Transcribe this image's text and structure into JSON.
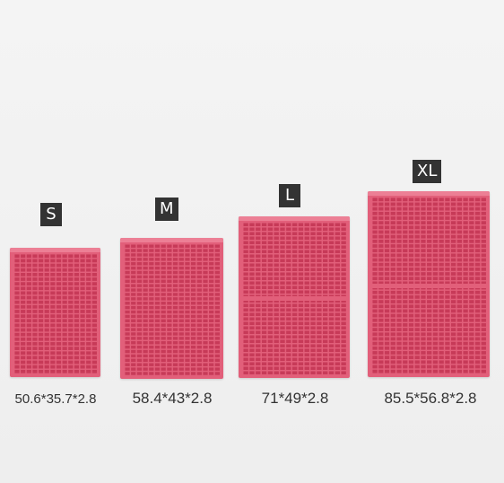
{
  "colors": {
    "mat_frame": "#e25f7a",
    "mat_rim": "#ec7f95",
    "mat_holes": "#c73a58",
    "badge_bg": "#333333",
    "label_text": "#333333"
  },
  "products": [
    {
      "size": "S",
      "dimensions": "50.6*35.7*2.8"
    },
    {
      "size": "M",
      "dimensions": "58.4*43*2.8"
    },
    {
      "size": "L",
      "dimensions": "71*49*2.8"
    },
    {
      "size": "XL",
      "dimensions": "85.5*56.8*2.8"
    }
  ]
}
